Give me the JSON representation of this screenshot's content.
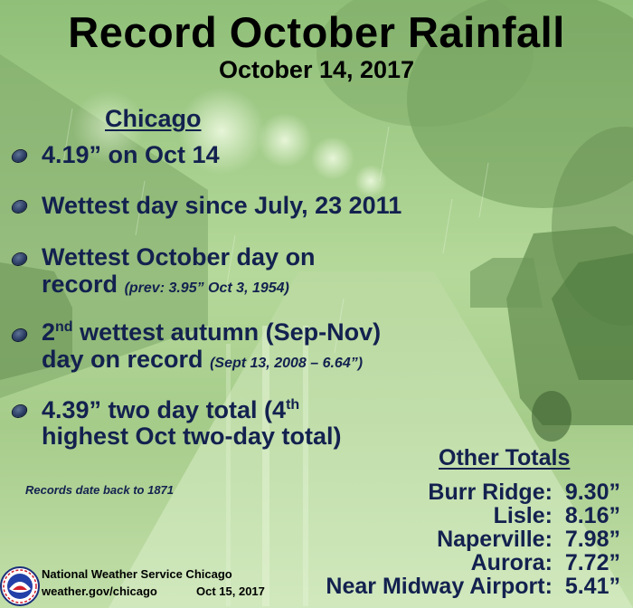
{
  "title": "Record October Rainfall",
  "date": "October 14, 2017",
  "chicago": {
    "heading": "Chicago",
    "items": [
      {
        "text": "4.19” on Oct 14"
      },
      {
        "text": "Wettest day since July, 23 2011"
      },
      {
        "line1": "Wettest October day on",
        "line2": "record",
        "note": "(prev:  3.95” Oct 3, 1954)"
      },
      {
        "ord_num": "2",
        "ord_suffix": "nd",
        "line1_rest": " wettest autumn (Sep-Nov)",
        "line2": "day on record",
        "note": "(Sept 13, 2008 – 6.64”)"
      },
      {
        "line1": "4.39” two day total (4",
        "line1_sup": "th",
        "line2": "highest Oct two-day total)"
      }
    ]
  },
  "records_note": "Records date back to 1871",
  "other_totals": {
    "heading": "Other Totals",
    "rows": [
      {
        "location": "Burr Ridge:",
        "amount": "9.30”"
      },
      {
        "location": "Lisle:",
        "amount": "8.16”"
      },
      {
        "location": "Naperville:",
        "amount": "7.98”"
      },
      {
        "location": "Aurora:",
        "amount": "7.72”"
      },
      {
        "location": "Near Midway Airport:",
        "amount": "5.41”"
      }
    ]
  },
  "footer": {
    "org": "National Weather Service Chicago",
    "url": "weather.gov/chicago",
    "date": "Oct 15, 2017"
  },
  "colors": {
    "text_dark": "#13214f",
    "tint": "#a9cf8e",
    "title": "#000000"
  },
  "logo": {
    "icon": "nws-logo-icon"
  }
}
